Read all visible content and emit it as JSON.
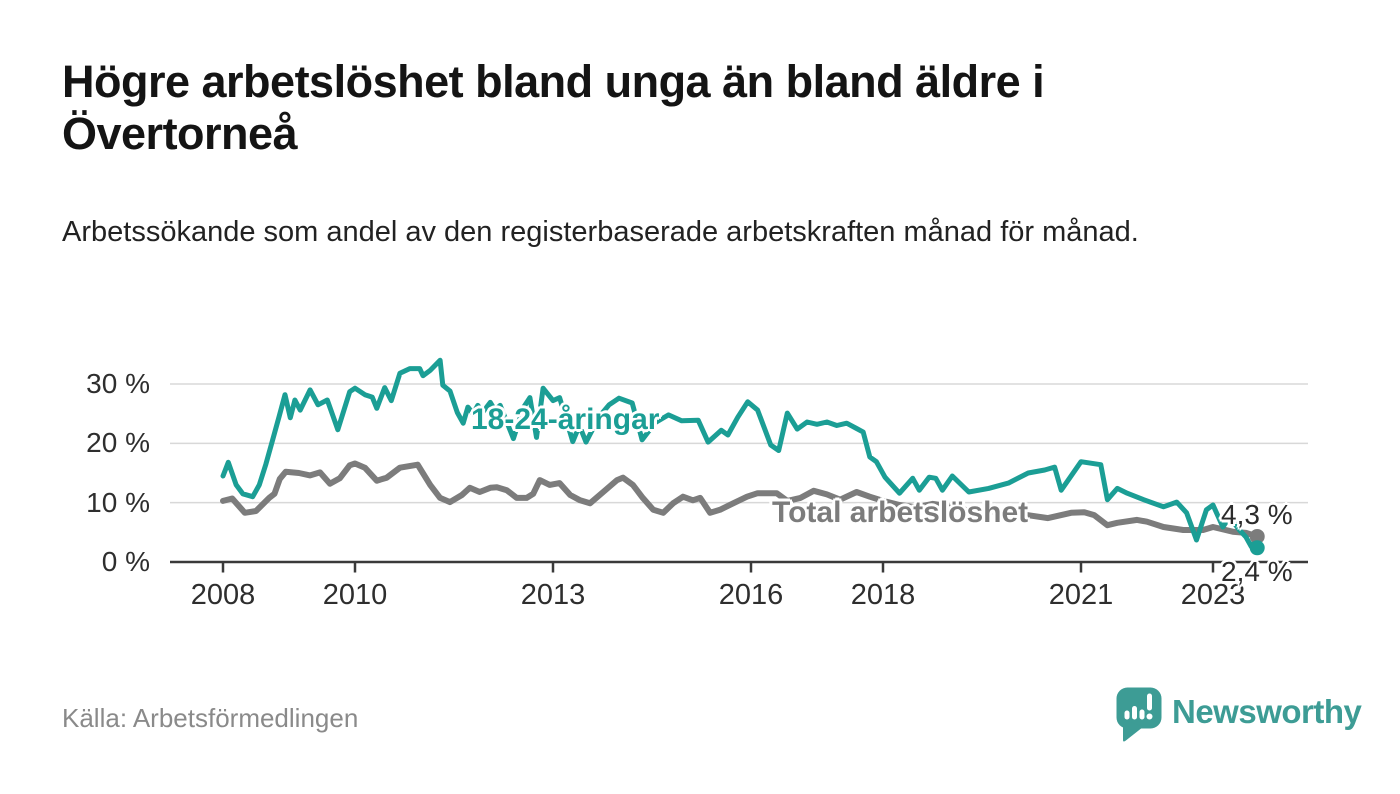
{
  "header": {
    "title": "Högre arbetslöshet bland unga än bland äldre i Övertorneå",
    "subtitle": "Arbetssökande som andel av den registerbaserade arbetskraften månad för månad."
  },
  "chart_data": {
    "type": "line",
    "title": "Högre arbetslöshet bland unga än bland äldre i Övertorneå",
    "subtitle": "Arbetssökande som andel av den registerbaserade arbetskraften månad för månad.",
    "unit": "%",
    "x_axis": {
      "ticks": [
        2008,
        2010,
        2013,
        2016,
        2018,
        2021,
        2023
      ],
      "range": [
        2007.2,
        2024.4
      ]
    },
    "y_axis": {
      "ticks": [
        0,
        10,
        20,
        30
      ],
      "tick_labels": [
        "0 %",
        "10 %",
        "20 %",
        "30 %"
      ],
      "range": [
        0,
        36.5
      ]
    },
    "grid": "horizontal",
    "colors": {
      "grid": "#D8D8D8",
      "axis": "#3A3A3A",
      "tick_text": "#2E2E2E"
    },
    "series": [
      {
        "name": "18-24-åringar",
        "color": "#1B9E95",
        "end_value": 2.4,
        "end_value_label": "2,4 %",
        "points": [
          [
            2008.0,
            14.5
          ],
          [
            2008.08,
            16.8
          ],
          [
            2008.2,
            13.0
          ],
          [
            2008.3,
            11.5
          ],
          [
            2008.45,
            11.0
          ],
          [
            2008.55,
            13.0
          ],
          [
            2008.65,
            16.5
          ],
          [
            2008.75,
            20.5
          ],
          [
            2008.85,
            24.5
          ],
          [
            2008.94,
            28.2
          ],
          [
            2009.02,
            24.3
          ],
          [
            2009.09,
            27.3
          ],
          [
            2009.17,
            25.6
          ],
          [
            2009.32,
            29.0
          ],
          [
            2009.44,
            26.5
          ],
          [
            2009.58,
            27.3
          ],
          [
            2009.67,
            24.5
          ],
          [
            2009.74,
            22.3
          ],
          [
            2009.92,
            28.7
          ],
          [
            2010.0,
            29.3
          ],
          [
            2010.15,
            28.2
          ],
          [
            2010.26,
            27.8
          ],
          [
            2010.33,
            25.9
          ],
          [
            2010.45,
            29.4
          ],
          [
            2010.55,
            27.2
          ],
          [
            2010.68,
            31.8
          ],
          [
            2010.83,
            32.6
          ],
          [
            2010.98,
            32.6
          ],
          [
            2011.03,
            31.4
          ],
          [
            2011.14,
            32.3
          ],
          [
            2011.29,
            34.0
          ],
          [
            2011.33,
            29.8
          ],
          [
            2011.44,
            28.8
          ],
          [
            2011.55,
            25.2
          ],
          [
            2011.64,
            23.4
          ],
          [
            2011.71,
            26.1
          ],
          [
            2011.79,
            25.0
          ],
          [
            2011.86,
            26.4
          ],
          [
            2011.94,
            25.3
          ],
          [
            2012.05,
            26.9
          ],
          [
            2012.12,
            25.6
          ],
          [
            2012.2,
            26.4
          ],
          [
            2012.4,
            20.8
          ],
          [
            2012.55,
            26.0
          ],
          [
            2012.65,
            27.7
          ],
          [
            2012.75,
            21.0
          ],
          [
            2012.85,
            29.3
          ],
          [
            2013.0,
            27.2
          ],
          [
            2013.1,
            27.7
          ],
          [
            2013.3,
            20.3
          ],
          [
            2013.4,
            23.0
          ],
          [
            2013.5,
            20.2
          ],
          [
            2013.7,
            24.5
          ],
          [
            2013.85,
            26.5
          ],
          [
            2014.0,
            27.6
          ],
          [
            2014.2,
            26.8
          ],
          [
            2014.35,
            20.6
          ],
          [
            2014.55,
            23.5
          ],
          [
            2014.75,
            24.8
          ],
          [
            2014.95,
            23.8
          ],
          [
            2015.2,
            23.9
          ],
          [
            2015.35,
            20.2
          ],
          [
            2015.55,
            22.2
          ],
          [
            2015.65,
            21.4
          ],
          [
            2015.8,
            24.4
          ],
          [
            2015.95,
            27.0
          ],
          [
            2016.1,
            25.6
          ],
          [
            2016.3,
            19.7
          ],
          [
            2016.42,
            18.8
          ],
          [
            2016.55,
            25.1
          ],
          [
            2016.7,
            22.4
          ],
          [
            2016.85,
            23.6
          ],
          [
            2017.0,
            23.2
          ],
          [
            2017.15,
            23.6
          ],
          [
            2017.3,
            23.0
          ],
          [
            2017.45,
            23.4
          ],
          [
            2017.6,
            22.5
          ],
          [
            2017.7,
            21.9
          ],
          [
            2017.8,
            17.7
          ],
          [
            2017.9,
            16.9
          ],
          [
            2018.03,
            14.3
          ],
          [
            2018.25,
            11.6
          ],
          [
            2018.45,
            14.1
          ],
          [
            2018.55,
            12.1
          ],
          [
            2018.7,
            14.3
          ],
          [
            2018.8,
            14.1
          ],
          [
            2018.9,
            12.1
          ],
          [
            2019.05,
            14.5
          ],
          [
            2019.3,
            11.8
          ],
          [
            2019.6,
            12.4
          ],
          [
            2019.9,
            13.3
          ],
          [
            2020.2,
            15.0
          ],
          [
            2020.45,
            15.5
          ],
          [
            2020.6,
            16.0
          ],
          [
            2020.7,
            12.1
          ],
          [
            2021.0,
            16.9
          ],
          [
            2021.3,
            16.4
          ],
          [
            2021.4,
            10.5
          ],
          [
            2021.55,
            12.4
          ],
          [
            2021.7,
            11.6
          ],
          [
            2021.95,
            10.5
          ],
          [
            2022.25,
            9.3
          ],
          [
            2022.45,
            10.1
          ],
          [
            2022.6,
            8.3
          ],
          [
            2022.75,
            3.7
          ],
          [
            2022.9,
            8.8
          ],
          [
            2023.0,
            9.6
          ],
          [
            2023.15,
            5.9
          ],
          [
            2023.25,
            7.6
          ],
          [
            2023.4,
            5.4
          ],
          [
            2023.5,
            4.2
          ],
          [
            2023.58,
            2.6
          ],
          [
            2023.63,
            3.4
          ],
          [
            2023.67,
            2.4
          ]
        ]
      },
      {
        "name": "Total arbetslöshet",
        "color": "#7C7C7C",
        "end_value": 4.3,
        "end_value_label": "4,3 %",
        "points": [
          [
            2008.0,
            10.3
          ],
          [
            2008.14,
            10.7
          ],
          [
            2008.33,
            8.3
          ],
          [
            2008.5,
            8.6
          ],
          [
            2008.7,
            10.8
          ],
          [
            2008.78,
            11.5
          ],
          [
            2008.86,
            14.0
          ],
          [
            2008.95,
            15.2
          ],
          [
            2009.15,
            15.0
          ],
          [
            2009.32,
            14.6
          ],
          [
            2009.47,
            15.1
          ],
          [
            2009.62,
            13.2
          ],
          [
            2009.77,
            14.1
          ],
          [
            2009.92,
            16.3
          ],
          [
            2010.0,
            16.6
          ],
          [
            2010.15,
            15.9
          ],
          [
            2010.33,
            13.7
          ],
          [
            2010.48,
            14.2
          ],
          [
            2010.68,
            15.9
          ],
          [
            2010.95,
            16.4
          ],
          [
            2011.14,
            13.0
          ],
          [
            2011.29,
            10.8
          ],
          [
            2011.44,
            10.1
          ],
          [
            2011.62,
            11.3
          ],
          [
            2011.74,
            12.5
          ],
          [
            2011.89,
            11.8
          ],
          [
            2012.05,
            12.5
          ],
          [
            2012.15,
            12.6
          ],
          [
            2012.3,
            12.1
          ],
          [
            2012.45,
            10.8
          ],
          [
            2012.6,
            10.8
          ],
          [
            2012.7,
            11.5
          ],
          [
            2012.8,
            13.8
          ],
          [
            2012.95,
            13.0
          ],
          [
            2013.1,
            13.3
          ],
          [
            2013.26,
            11.3
          ],
          [
            2013.41,
            10.4
          ],
          [
            2013.56,
            9.9
          ],
          [
            2013.76,
            11.8
          ],
          [
            2013.97,
            13.8
          ],
          [
            2014.06,
            14.2
          ],
          [
            2014.21,
            13.0
          ],
          [
            2014.36,
            10.8
          ],
          [
            2014.52,
            8.8
          ],
          [
            2014.67,
            8.3
          ],
          [
            2014.82,
            9.9
          ],
          [
            2014.97,
            11.0
          ],
          [
            2015.12,
            10.4
          ],
          [
            2015.23,
            10.8
          ],
          [
            2015.38,
            8.3
          ],
          [
            2015.53,
            8.8
          ],
          [
            2015.73,
            9.9
          ],
          [
            2015.94,
            11.0
          ],
          [
            2016.1,
            11.6
          ],
          [
            2016.39,
            11.6
          ],
          [
            2016.55,
            10.3
          ],
          [
            2016.75,
            10.8
          ],
          [
            2016.95,
            12.0
          ],
          [
            2017.15,
            11.4
          ],
          [
            2017.35,
            10.5
          ],
          [
            2017.6,
            11.8
          ],
          [
            2017.8,
            11.0
          ],
          [
            2018.0,
            10.3
          ],
          [
            2018.25,
            9.6
          ],
          [
            2018.5,
            9.2
          ],
          [
            2018.75,
            9.8
          ],
          [
            2019.0,
            9.4
          ],
          [
            2019.25,
            8.8
          ],
          [
            2019.5,
            8.3
          ],
          [
            2019.75,
            8.6
          ],
          [
            2020.0,
            8.2
          ],
          [
            2020.25,
            7.8
          ],
          [
            2020.5,
            7.4
          ],
          [
            2020.85,
            8.3
          ],
          [
            2021.05,
            8.4
          ],
          [
            2021.2,
            7.9
          ],
          [
            2021.4,
            6.2
          ],
          [
            2021.55,
            6.6
          ],
          [
            2021.85,
            7.1
          ],
          [
            2022.0,
            6.8
          ],
          [
            2022.25,
            5.9
          ],
          [
            2022.55,
            5.4
          ],
          [
            2022.85,
            5.4
          ],
          [
            2023.0,
            5.9
          ],
          [
            2023.3,
            5.1
          ],
          [
            2023.5,
            4.9
          ],
          [
            2023.67,
            4.3
          ]
        ]
      }
    ],
    "legend_position": "inline-labels"
  },
  "footer": {
    "source": "Källa: Arbetsförmedlingen",
    "logo_text": "Newsworthy",
    "logo_color": "#3D9C95"
  }
}
